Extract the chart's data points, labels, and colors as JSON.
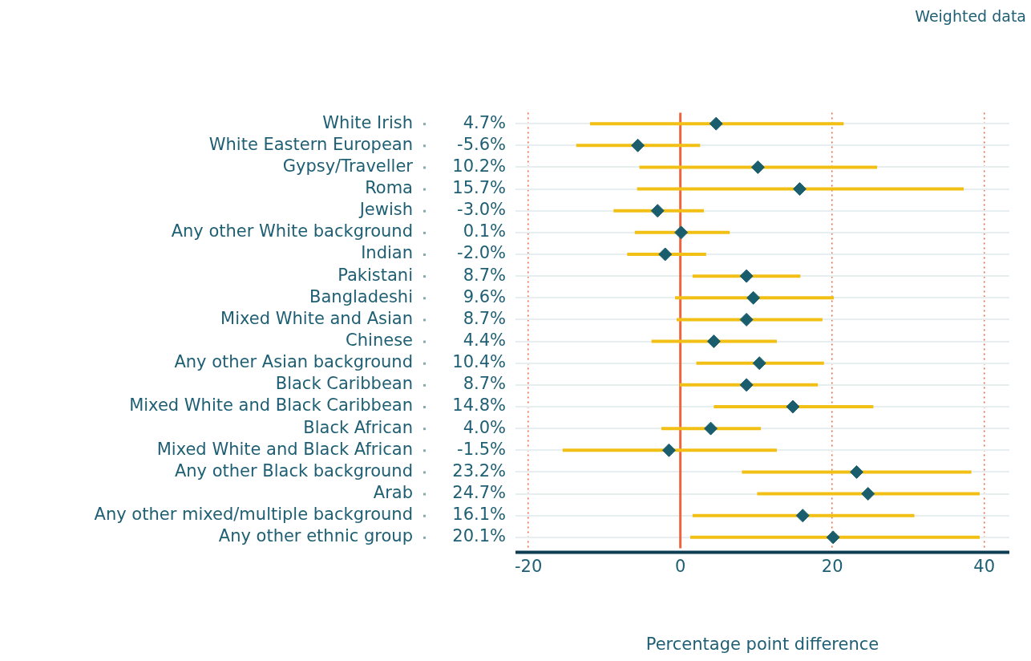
{
  "chart_data": {
    "type": "scatter",
    "orientation": "horizontal",
    "xlabel": "Percentage point difference",
    "annotations": [
      "Weighted data"
    ],
    "categories": [
      "White Irish",
      "White Eastern European",
      "Gypsy/Traveller",
      "Roma",
      "Jewish",
      "Any other White background",
      "Indian",
      "Pakistani",
      "Bangladeshi",
      "Mixed White and Asian",
      "Chinese",
      "Any other Asian background",
      "Black Caribbean",
      "Mixed White and Black Caribbean",
      "Black African",
      "Mixed White and Black African",
      "Any other Black background",
      "Arab",
      "Any other mixed/multiple background",
      "Any other ethnic group"
    ],
    "values": [
      4.7,
      -5.6,
      10.2,
      15.7,
      -3.0,
      0.1,
      -2.0,
      8.7,
      9.6,
      8.7,
      4.4,
      10.4,
      8.7,
      14.8,
      4.0,
      -1.5,
      23.2,
      24.7,
      16.1,
      20.1
    ],
    "value_labels": [
      "4.7%",
      "-5.6%",
      "10.2%",
      "15.7%",
      "-3.0%",
      "0.1%",
      "-2.0%",
      "8.7%",
      "9.6%",
      "8.7%",
      "4.4%",
      "10.4%",
      "8.7%",
      "14.8%",
      "4.0%",
      "-1.5%",
      "23.2%",
      "24.7%",
      "16.1%",
      "20.1%"
    ],
    "errors": [
      [
        -11.9,
        21.5
      ],
      [
        -13.7,
        2.6
      ],
      [
        -5.4,
        25.9
      ],
      [
        -5.7,
        37.3
      ],
      [
        -8.8,
        3.1
      ],
      [
        -6.0,
        6.5
      ],
      [
        -7.0,
        3.4
      ],
      [
        1.6,
        15.8
      ],
      [
        -0.7,
        20.2
      ],
      [
        -0.5,
        18.7
      ],
      [
        -3.8,
        12.7
      ],
      [
        2.1,
        18.9
      ],
      [
        -0.1,
        18.1
      ],
      [
        4.4,
        25.4
      ],
      [
        -2.5,
        10.6
      ],
      [
        -15.5,
        12.7
      ],
      [
        8.1,
        38.3
      ],
      [
        10.1,
        39.4
      ],
      [
        1.6,
        30.8
      ],
      [
        1.3,
        39.4
      ]
    ],
    "color": "#1a5e6e",
    "xlim": [
      -21.7,
      43.3
    ],
    "xticks": [
      -20,
      0,
      20,
      40
    ],
    "ref_lines": [
      {
        "axis": "x",
        "value": 0,
        "color": "#f0643c"
      }
    ],
    "grid": true,
    "marker": "diamond",
    "legend": false
  }
}
